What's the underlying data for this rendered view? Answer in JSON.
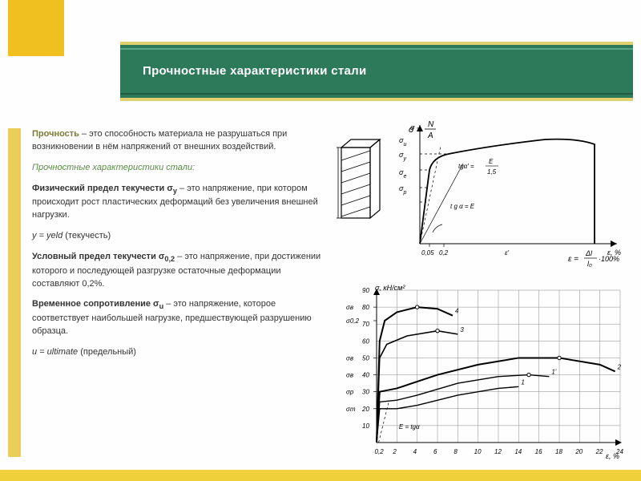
{
  "colors": {
    "accent": "#f0c020",
    "band": "#2c7a5a",
    "band_border": "#e2cf6e",
    "side": "#eace5c",
    "olive": "#7d7a33",
    "green_italic": "#5a8b45"
  },
  "title": "Прочностные характеристики стали",
  "text": {
    "p1_lead": "Прочность",
    "p1_rest": " – это способность материала не разрушаться при возникновении в нём напряжений от внешних воздействий.",
    "p2": "Прочностные характеристики стали:",
    "p3_lead": "Физический предел текучести σ",
    "p3_sub": "y",
    "p3_rest": " – это напряжение, при котором происходит рост пластических деформаций без увеличения внешней нагрузки.",
    "p4_pre": "y = ",
    "p4_it": "yeld",
    "p4_rest": " (текучесть)",
    "p5_lead": "Условный предел текучести σ",
    "p5_sub": "0,2",
    "p5_rest": " – это напряжение, при достижении которого и последующей разгрузке остаточные деформации составляют 0,2%.",
    "p6_lead": "Временное сопротивление σ",
    "p6_sub": "u",
    "p6_rest": " – это напряжение, которое соответствует наибольшей нагрузке, предшествующей разрушению образца.",
    "p7_pre": "u = ",
    "p7_it": "ultimate",
    "p7_rest": " (предельный)"
  },
  "formulas": {
    "top": "σ = N / A",
    "eps": "ε = (Δl / l₀)·100%"
  },
  "diagram_top": {
    "type": "line",
    "xlabel": "ε, %",
    "ylabel": "σ",
    "annotations": [
      "σu",
      "σy",
      "σe",
      "σp",
      "tgα = E",
      "tgα′ = E/1,5",
      "0,05",
      "0,2",
      "ε′"
    ],
    "line_color": "#000000",
    "line_width": 1.8
  },
  "diagram_bot": {
    "type": "line",
    "xlabel": "ε, %",
    "ylabel": "σ, кН/см²",
    "xlim": [
      0,
      24
    ],
    "ylim": [
      0,
      90
    ],
    "xtick_step": 2,
    "ytick_step": 10,
    "xticks": [
      "0,2",
      "2",
      "4",
      "6",
      "8",
      "10",
      "12",
      "14",
      "16",
      "18",
      "20",
      "22",
      "24"
    ],
    "grid_color": "#888888",
    "background_color": "#ffffff",
    "series": [
      {
        "name": "curve-4",
        "label": "4",
        "color": "#000000",
        "width": 2.0,
        "points": [
          [
            0,
            0
          ],
          [
            0.3,
            60
          ],
          [
            0.8,
            72
          ],
          [
            2,
            77
          ],
          [
            4,
            80
          ],
          [
            6,
            79
          ],
          [
            7.5,
            75
          ]
        ]
      },
      {
        "name": "curve-3",
        "label": "3",
        "color": "#000000",
        "width": 1.6,
        "points": [
          [
            0,
            0
          ],
          [
            0.3,
            50
          ],
          [
            1,
            58
          ],
          [
            3,
            63
          ],
          [
            6,
            66
          ],
          [
            8,
            64
          ]
        ]
      },
      {
        "name": "curve-2",
        "label": "2",
        "color": "#000000",
        "width": 2.0,
        "points": [
          [
            0,
            0
          ],
          [
            0.3,
            30
          ],
          [
            2,
            32
          ],
          [
            6,
            40
          ],
          [
            10,
            46
          ],
          [
            14,
            50
          ],
          [
            18,
            50
          ],
          [
            22,
            46
          ],
          [
            23.5,
            42
          ]
        ]
      },
      {
        "name": "curve-1p",
        "label": "1'",
        "color": "#000000",
        "width": 1.4,
        "points": [
          [
            0,
            0
          ],
          [
            0.3,
            24
          ],
          [
            2,
            25
          ],
          [
            4,
            28
          ],
          [
            8,
            35
          ],
          [
            12,
            39
          ],
          [
            15,
            40
          ],
          [
            17,
            39
          ]
        ]
      },
      {
        "name": "curve-1",
        "label": "1",
        "color": "#000000",
        "width": 1.4,
        "points": [
          [
            0,
            0
          ],
          [
            0.3,
            20
          ],
          [
            2,
            20
          ],
          [
            4,
            22
          ],
          [
            8,
            28
          ],
          [
            12,
            32
          ],
          [
            14,
            33
          ]
        ]
      }
    ],
    "y_markers": [
      "σв",
      "σ0,2",
      "σв",
      "σв",
      "σр",
      "σт"
    ]
  }
}
